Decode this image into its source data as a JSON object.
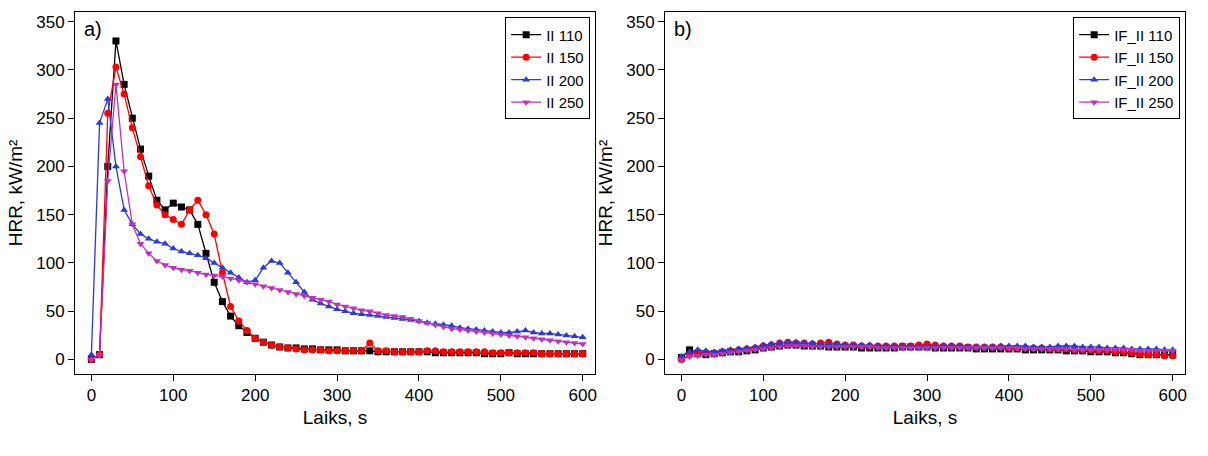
{
  "chart_data": [
    {
      "type": "line",
      "annotations": [
        "a)"
      ],
      "x_label": "Laiks, s",
      "y_label": "HRR, kW/m²",
      "xlim": [
        -20,
        615
      ],
      "xticks": [
        0,
        100,
        200,
        300,
        400,
        500,
        600
      ],
      "ylim": [
        -15,
        360
      ],
      "yticks": [
        0,
        50,
        100,
        150,
        200,
        250,
        300,
        350
      ],
      "grid": false,
      "legend": "top right",
      "x": [
        0,
        10,
        20,
        30,
        40,
        50,
        60,
        70,
        80,
        90,
        100,
        110,
        120,
        130,
        140,
        150,
        160,
        170,
        180,
        190,
        200,
        210,
        220,
        230,
        240,
        250,
        260,
        270,
        280,
        290,
        300,
        310,
        320,
        330,
        340,
        350,
        360,
        370,
        380,
        390,
        400,
        410,
        420,
        430,
        440,
        450,
        460,
        470,
        480,
        490,
        500,
        510,
        520,
        530,
        540,
        550,
        560,
        570,
        580,
        590,
        600
      ],
      "series": [
        {
          "name": "II 110",
          "color": "#000000",
          "marker": "square",
          "values": [
            0,
            5,
            200,
            330,
            285,
            250,
            218,
            190,
            165,
            155,
            162,
            158,
            155,
            140,
            110,
            80,
            60,
            45,
            35,
            28,
            22,
            18,
            15,
            13,
            12,
            12,
            11,
            11,
            10,
            10,
            10,
            9,
            9,
            9,
            9,
            8,
            8,
            8,
            8,
            8,
            8,
            8,
            7,
            7,
            7,
            7,
            7,
            7,
            6,
            6,
            6,
            7,
            6,
            6,
            6,
            6,
            6,
            6,
            6,
            6,
            6
          ]
        },
        {
          "name": "II 150",
          "color": "#ff0000",
          "marker": "circle",
          "values": [
            0,
            5,
            255,
            303,
            275,
            240,
            210,
            180,
            160,
            150,
            145,
            140,
            155,
            165,
            150,
            130,
            90,
            55,
            40,
            30,
            22,
            18,
            15,
            13,
            12,
            11,
            10,
            10,
            10,
            9,
            9,
            9,
            9,
            9,
            17,
            9,
            9,
            8,
            8,
            8,
            8,
            9,
            9,
            8,
            8,
            8,
            8,
            8,
            8,
            7,
            7,
            7,
            7,
            7,
            7,
            6,
            6,
            6,
            6,
            6,
            6
          ]
        },
        {
          "name": "II 200",
          "color": "#2a3bd6",
          "marker": "triangle-up",
          "values": [
            5,
            245,
            270,
            200,
            155,
            140,
            130,
            125,
            122,
            120,
            115,
            112,
            110,
            108,
            105,
            100,
            95,
            90,
            85,
            80,
            82,
            95,
            102,
            100,
            90,
            80,
            70,
            62,
            58,
            55,
            52,
            50,
            48,
            47,
            46,
            45,
            44,
            43,
            42,
            41,
            40,
            38,
            37,
            36,
            35,
            33,
            32,
            31,
            30,
            29,
            28,
            28,
            29,
            30,
            28,
            27,
            27,
            26,
            25,
            24,
            23
          ]
        },
        {
          "name": "II 250",
          "color": "#c030c0",
          "marker": "triangle-down",
          "values": [
            0,
            5,
            185,
            285,
            195,
            140,
            120,
            110,
            102,
            98,
            95,
            93,
            92,
            90,
            88,
            87,
            86,
            84,
            82,
            80,
            78,
            76,
            74,
            72,
            70,
            68,
            66,
            64,
            62,
            60,
            57,
            55,
            53,
            51,
            50,
            48,
            46,
            45,
            44,
            42,
            40,
            38,
            36,
            34,
            32,
            31,
            30,
            29,
            28,
            27,
            26,
            25,
            24,
            23,
            22,
            21,
            20,
            19,
            18,
            17,
            16
          ]
        }
      ]
    },
    {
      "type": "line",
      "annotations": [
        "b)"
      ],
      "x_label": "Laiks, s",
      "y_label": "HRR, kW/m²",
      "xlim": [
        -20,
        615
      ],
      "xticks": [
        0,
        100,
        200,
        300,
        400,
        500,
        600
      ],
      "ylim": [
        -15,
        360
      ],
      "yticks": [
        0,
        50,
        100,
        150,
        200,
        250,
        300,
        350
      ],
      "grid": false,
      "legend": "top right",
      "x": [
        0,
        10,
        20,
        30,
        40,
        50,
        60,
        70,
        80,
        90,
        100,
        110,
        120,
        130,
        140,
        150,
        160,
        170,
        180,
        190,
        200,
        210,
        220,
        230,
        240,
        250,
        260,
        270,
        280,
        290,
        300,
        310,
        320,
        330,
        340,
        350,
        360,
        370,
        380,
        390,
        400,
        410,
        420,
        430,
        440,
        450,
        460,
        470,
        480,
        490,
        500,
        510,
        520,
        530,
        540,
        550,
        560,
        570,
        580,
        590,
        600
      ],
      "series": [
        {
          "name": "IF_II 110",
          "color": "#000000",
          "marker": "square",
          "values": [
            2,
            10,
            6,
            5,
            6,
            7,
            8,
            8,
            9,
            10,
            12,
            13,
            14,
            15,
            15,
            14,
            14,
            14,
            13,
            13,
            13,
            13,
            12,
            12,
            12,
            12,
            12,
            13,
            13,
            13,
            13,
            12,
            12,
            12,
            12,
            12,
            11,
            11,
            11,
            11,
            11,
            11,
            10,
            10,
            10,
            10,
            10,
            9,
            9,
            9,
            8,
            8,
            8,
            7,
            7,
            6,
            5,
            5,
            5,
            5,
            5
          ]
        },
        {
          "name": "IF_II 150",
          "color": "#ff0000",
          "marker": "circle",
          "values": [
            0,
            5,
            8,
            7,
            6,
            8,
            9,
            10,
            11,
            12,
            14,
            15,
            17,
            18,
            17,
            17,
            16,
            17,
            18,
            16,
            15,
            15,
            14,
            14,
            14,
            14,
            14,
            14,
            14,
            15,
            16,
            15,
            14,
            14,
            14,
            13,
            13,
            13,
            13,
            13,
            12,
            12,
            12,
            12,
            12,
            11,
            11,
            11,
            10,
            10,
            10,
            9,
            9,
            8,
            8,
            7,
            6,
            5,
            5,
            4,
            4
          ]
        },
        {
          "name": "IF_II 200",
          "color": "#2a3bd6",
          "marker": "triangle-up",
          "values": [
            3,
            8,
            10,
            9,
            8,
            9,
            10,
            11,
            12,
            13,
            15,
            16,
            17,
            18,
            18,
            17,
            17,
            16,
            16,
            16,
            15,
            15,
            15,
            15,
            14,
            14,
            14,
            14,
            14,
            14,
            14,
            14,
            14,
            14,
            14,
            13,
            13,
            13,
            13,
            14,
            14,
            14,
            14,
            13,
            13,
            13,
            14,
            14,
            14,
            13,
            13,
            13,
            12,
            12,
            12,
            11,
            11,
            11,
            11,
            10,
            10
          ]
        },
        {
          "name": "IF_II 250",
          "color": "#c030c0",
          "marker": "triangle-down",
          "values": [
            0,
            3,
            4,
            5,
            5,
            6,
            7,
            8,
            9,
            10,
            11,
            12,
            13,
            14,
            14,
            14,
            13,
            13,
            13,
            13,
            13,
            13,
            13,
            13,
            12,
            12,
            12,
            12,
            12,
            12,
            12,
            12,
            12,
            12,
            12,
            12,
            12,
            12,
            12,
            12,
            12,
            12,
            11,
            11,
            11,
            11,
            11,
            11,
            10,
            10,
            10,
            10,
            10,
            10,
            10,
            10,
            9,
            9,
            9,
            9,
            9
          ]
        }
      ]
    }
  ]
}
